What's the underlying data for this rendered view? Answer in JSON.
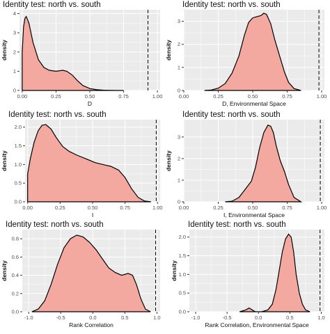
{
  "colors": {
    "fill": "#f4a9a0",
    "panel_bg": "#ebebeb",
    "line": "#000000"
  },
  "chart_data": [
    {
      "type": "area",
      "title": "Identity test: north vs. south",
      "xlabel": "D",
      "ylabel": "density",
      "xlim": [
        -0.02,
        1.02
      ],
      "ylim": [
        0,
        4.2
      ],
      "xticks": [
        0.0,
        0.25,
        0.5,
        0.75,
        1.0
      ],
      "xtick_labels": [
        "0.00",
        "0.25",
        "0.50",
        "0.75",
        "1.00"
      ],
      "yticks": [
        0,
        1,
        2,
        3,
        4
      ],
      "ytick_labels": [
        "0",
        "1",
        "2",
        "3",
        "4"
      ],
      "observed": 0.93,
      "x": [
        0.0,
        0.01,
        0.02,
        0.03,
        0.05,
        0.08,
        0.12,
        0.16,
        0.2,
        0.25,
        0.3,
        0.33,
        0.37,
        0.41,
        0.45,
        0.5,
        0.55,
        0.6,
        0.65,
        0.7,
        0.75
      ],
      "y": [
        2.0,
        3.3,
        3.75,
        3.85,
        3.5,
        2.5,
        1.6,
        1.2,
        1.05,
        1.0,
        1.05,
        1.0,
        0.8,
        0.5,
        0.25,
        0.1,
        0.04,
        0.015,
        0.005,
        0.0,
        0.0
      ]
    },
    {
      "type": "area",
      "title": "Identity test: north vs. south",
      "xlabel": "D, Environmental Space",
      "ylabel": "density",
      "xlim": [
        0.0,
        1.02
      ],
      "ylim": [
        0,
        3.5
      ],
      "xticks": [
        0.0,
        0.25,
        0.5,
        0.75,
        1.0
      ],
      "xtick_labels": [
        "0.00",
        "0.25",
        "0.50",
        "0.75",
        "1.00"
      ],
      "yticks": [
        0,
        1,
        2,
        3
      ],
      "ytick_labels": [
        "0",
        "1",
        "2",
        "3"
      ],
      "observed": 0.98,
      "x": [
        0.15,
        0.2,
        0.25,
        0.3,
        0.35,
        0.4,
        0.44,
        0.47,
        0.5,
        0.53,
        0.56,
        0.58,
        0.6,
        0.63,
        0.66,
        0.7,
        0.73,
        0.76,
        0.8,
        0.85
      ],
      "y": [
        0.0,
        0.02,
        0.1,
        0.3,
        0.75,
        1.5,
        2.4,
        2.95,
        3.15,
        3.2,
        3.25,
        3.35,
        3.3,
        2.9,
        2.2,
        1.4,
        0.8,
        0.35,
        0.08,
        0.0
      ]
    },
    {
      "type": "area",
      "title": "Identity test: north vs. south",
      "xlabel": "I",
      "ylabel": "density",
      "xlim": [
        -0.02,
        1.02
      ],
      "ylim": [
        0,
        2.2
      ],
      "xticks": [
        0.0,
        0.25,
        0.5,
        0.75,
        1.0
      ],
      "xtick_labels": [
        "0.00",
        "0.25",
        "0.50",
        "0.75",
        "1.00"
      ],
      "yticks": [
        0.0,
        0.5,
        1.0,
        1.5,
        2.0
      ],
      "ytick_labels": [
        "0.0",
        "0.5",
        "1.0",
        "1.5",
        "2.0"
      ],
      "observed": 0.99,
      "x": [
        0.0,
        0.02,
        0.05,
        0.08,
        0.11,
        0.14,
        0.18,
        0.22,
        0.27,
        0.32,
        0.38,
        0.45,
        0.52,
        0.58,
        0.64,
        0.7,
        0.75,
        0.8,
        0.85,
        0.9,
        0.95
      ],
      "y": [
        0.75,
        1.15,
        1.6,
        1.9,
        2.05,
        2.07,
        1.95,
        1.72,
        1.48,
        1.35,
        1.25,
        1.15,
        1.05,
        1.0,
        0.95,
        0.85,
        0.65,
        0.35,
        0.12,
        0.02,
        0.0
      ]
    },
    {
      "type": "area",
      "title": "Identity test: north vs. south",
      "xlabel": "I, Environmental Space",
      "ylabel": "density",
      "xlim": [
        0.0,
        1.02
      ],
      "ylim": [
        0,
        3.8
      ],
      "xticks": [
        0.0,
        0.25,
        0.5,
        0.75,
        1.0
      ],
      "xtick_labels": [
        "0.00",
        "0.25",
        "0.50",
        "0.75",
        "1.00"
      ],
      "yticks": [
        0,
        1,
        2,
        3
      ],
      "ytick_labels": [
        "0",
        "1",
        "2",
        "3"
      ],
      "observed": 0.99,
      "x": [
        0.3,
        0.35,
        0.4,
        0.43,
        0.46,
        0.49,
        0.52,
        0.55,
        0.58,
        0.61,
        0.63,
        0.65,
        0.67,
        0.7,
        0.73,
        0.76,
        0.8,
        0.85
      ],
      "y": [
        0.0,
        0.03,
        0.2,
        0.45,
        0.7,
        0.95,
        1.6,
        2.5,
        3.2,
        3.55,
        3.5,
        3.2,
        2.6,
        1.9,
        1.4,
        0.8,
        0.2,
        0.0
      ]
    },
    {
      "type": "area",
      "title": "Identity test: north vs. south",
      "xlabel": "Rank Correlation",
      "ylabel": "density",
      "xlim": [
        -1.1,
        1.05
      ],
      "ylim": [
        0,
        0.9
      ],
      "xticks": [
        -1.0,
        -0.5,
        0.0,
        0.5,
        1.0
      ],
      "xtick_labels": [
        "-1.0",
        "-0.5",
        "0.0",
        "0.5",
        "1.0"
      ],
      "yticks": [
        0.0,
        0.2,
        0.4,
        0.6,
        0.8
      ],
      "ytick_labels": [
        "0.0",
        "0.2",
        "0.4",
        "0.6",
        "0.8"
      ],
      "observed": 0.98,
      "x": [
        -0.95,
        -0.85,
        -0.75,
        -0.65,
        -0.55,
        -0.45,
        -0.35,
        -0.25,
        -0.15,
        -0.05,
        0.05,
        0.15,
        0.25,
        0.35,
        0.45,
        0.55,
        0.62,
        0.68,
        0.75,
        0.82,
        0.9
      ],
      "y": [
        0.0,
        0.03,
        0.12,
        0.3,
        0.52,
        0.7,
        0.8,
        0.84,
        0.82,
        0.76,
        0.68,
        0.58,
        0.48,
        0.43,
        0.4,
        0.42,
        0.4,
        0.3,
        0.14,
        0.03,
        0.0
      ]
    },
    {
      "type": "area",
      "title": "Identity test: north vs. south",
      "xlabel": "Rank Correlation, Environmental Space",
      "ylabel": "density",
      "xlim": [
        -1.1,
        1.05
      ],
      "ylim": [
        0,
        2.2
      ],
      "xticks": [
        -1.0,
        -0.5,
        0.0,
        0.5,
        1.0
      ],
      "xtick_labels": [
        "-1.0",
        "-0.5",
        "0.0",
        "0.5",
        "1.0"
      ],
      "yticks": [
        0.0,
        0.5,
        1.0,
        1.5,
        2.0
      ],
      "ytick_labels": [
        "0.0",
        "0.5",
        "1.0",
        "1.5",
        "2.0"
      ],
      "observed": 0.98,
      "x": [
        -0.3,
        -0.2,
        -0.15,
        -0.1,
        -0.05,
        0.05,
        0.15,
        0.22,
        0.28,
        0.33,
        0.38,
        0.43,
        0.48,
        0.52,
        0.56,
        0.6,
        0.65,
        0.7,
        0.75,
        0.82
      ],
      "y": [
        0.0,
        0.05,
        0.1,
        0.05,
        0.0,
        0.0,
        0.05,
        0.2,
        0.6,
        1.1,
        1.6,
        1.95,
        2.08,
        2.0,
        1.6,
        1.0,
        0.5,
        0.2,
        0.05,
        0.0
      ]
    }
  ]
}
